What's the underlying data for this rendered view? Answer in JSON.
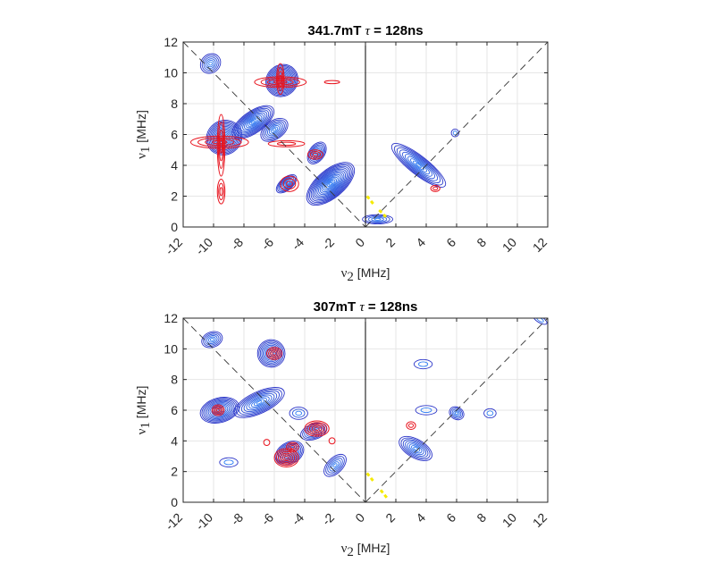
{
  "chart_data": [
    {
      "type": "contour",
      "title_field": "341.7mT",
      "title_tau": "τ",
      "title_rest": " = 128ns",
      "xlabel_sym": "ν",
      "xlabel_sub": "2",
      "xlabel_unit": " [MHz]",
      "ylabel_sym": "ν",
      "ylabel_sub": "1",
      "ylabel_unit": " [MHz]",
      "xlim": [
        -12,
        12
      ],
      "ylim": [
        0,
        12
      ],
      "xticks": [
        -12,
        -10,
        -8,
        -6,
        -4,
        -2,
        0,
        2,
        4,
        6,
        8,
        10,
        12
      ],
      "yticks": [
        0,
        2,
        4,
        6,
        8,
        10,
        12
      ],
      "grid": true,
      "colors": {
        "blue_series": "#2b35c8",
        "blue_fill": "#2f7ef5",
        "red_series": "#e8141e",
        "yellow": "#f5ea00",
        "diagonal": "#333333"
      },
      "blue_peaks": [
        {
          "x": -10.2,
          "y": 10.6,
          "rx": 0.7,
          "ry": 0.6,
          "rot": -40,
          "n": 6
        },
        {
          "x": -9.3,
          "y": 5.8,
          "rx": 1.2,
          "ry": 1.1,
          "rot": -35,
          "n": 14
        },
        {
          "x": -7.4,
          "y": 6.8,
          "rx": 1.6,
          "ry": 0.7,
          "rot": -35,
          "n": 12
        },
        {
          "x": -5.5,
          "y": 9.5,
          "rx": 1.1,
          "ry": 1.0,
          "rot": -45,
          "n": 14
        },
        {
          "x": -6.0,
          "y": 6.3,
          "rx": 1.0,
          "ry": 0.6,
          "rot": -35,
          "n": 8
        },
        {
          "x": -5.2,
          "y": 2.8,
          "rx": 0.8,
          "ry": 0.4,
          "rot": -40,
          "n": 8
        },
        {
          "x": -3.2,
          "y": 4.8,
          "rx": 0.8,
          "ry": 0.5,
          "rot": -55,
          "n": 8
        },
        {
          "x": -2.3,
          "y": 2.8,
          "rx": 1.9,
          "ry": 0.9,
          "rot": -40,
          "n": 16
        },
        {
          "x": 0.8,
          "y": 0.5,
          "rx": 1.0,
          "ry": 0.3,
          "rot": 0,
          "n": 5
        },
        {
          "x": 3.5,
          "y": 4.0,
          "rx": 2.2,
          "ry": 0.6,
          "rot": 38,
          "n": 10
        },
        {
          "x": 5.9,
          "y": 6.1,
          "rx": 0.25,
          "ry": 0.25,
          "rot": 0,
          "n": 2
        }
      ],
      "red_peaks": [
        {
          "x": -9.6,
          "y": 5.5,
          "rx": 1.9,
          "ry": 0.4,
          "n": 4
        },
        {
          "x": -9.5,
          "y": 5.3,
          "rx": 0.25,
          "ry": 2.0,
          "n": 4
        },
        {
          "x": -9.5,
          "y": 2.3,
          "rx": 0.25,
          "ry": 0.8,
          "n": 3
        },
        {
          "x": -5.6,
          "y": 9.4,
          "rx": 1.7,
          "ry": 0.35,
          "n": 4
        },
        {
          "x": -5.6,
          "y": 9.6,
          "rx": 0.25,
          "ry": 1.0,
          "n": 4
        },
        {
          "x": -5.2,
          "y": 5.4,
          "rx": 1.2,
          "ry": 0.2,
          "n": 2
        },
        {
          "x": -5.0,
          "y": 2.8,
          "rx": 0.6,
          "ry": 0.5,
          "n": 3
        },
        {
          "x": -3.3,
          "y": 4.7,
          "rx": 0.5,
          "ry": 0.3,
          "n": 3
        },
        {
          "x": -2.2,
          "y": 9.4,
          "rx": 0.5,
          "ry": 0.1,
          "n": 1
        },
        {
          "x": 4.6,
          "y": 2.5,
          "rx": 0.3,
          "ry": 0.2,
          "n": 2
        }
      ],
      "yellow_segments": [
        [
          0.1,
          2.0,
          0.6,
          1.4
        ],
        [
          0.9,
          1.1,
          1.4,
          0.6
        ]
      ]
    },
    {
      "type": "contour",
      "title_field": "307mT",
      "title_tau": "τ",
      "title_rest": " = 128ns",
      "xlabel_sym": "ν",
      "xlabel_sub": "2",
      "xlabel_unit": " [MHz]",
      "ylabel_sym": "ν",
      "ylabel_sub": "1",
      "ylabel_unit": " [MHz]",
      "xlim": [
        -12,
        12
      ],
      "ylim": [
        0,
        12
      ],
      "xticks": [
        -12,
        -10,
        -8,
        -6,
        -4,
        -2,
        0,
        2,
        4,
        6,
        8,
        10,
        12
      ],
      "yticks": [
        0,
        2,
        4,
        6,
        8,
        10,
        12
      ],
      "grid": true,
      "colors": {
        "blue_series": "#2b35c8",
        "blue_fill": "#2f7ef5",
        "red_series": "#e8141e",
        "yellow": "#f5ea00",
        "diagonal": "#333333"
      },
      "blue_peaks": [
        {
          "x": -10.1,
          "y": 10.6,
          "rx": 0.7,
          "ry": 0.5,
          "rot": -20,
          "n": 6
        },
        {
          "x": -6.2,
          "y": 9.7,
          "rx": 0.9,
          "ry": 0.9,
          "rot": -40,
          "n": 10
        },
        {
          "x": -9.6,
          "y": 6.0,
          "rx": 1.3,
          "ry": 0.8,
          "rot": -15,
          "n": 12
        },
        {
          "x": -7.0,
          "y": 6.5,
          "rx": 1.8,
          "ry": 0.7,
          "rot": -25,
          "n": 10
        },
        {
          "x": -5.0,
          "y": 3.2,
          "rx": 1.0,
          "ry": 0.7,
          "rot": -30,
          "n": 10
        },
        {
          "x": -3.4,
          "y": 4.6,
          "rx": 0.9,
          "ry": 0.5,
          "rot": -20,
          "n": 7
        },
        {
          "x": -2.0,
          "y": 2.4,
          "rx": 0.9,
          "ry": 0.5,
          "rot": -45,
          "n": 6
        },
        {
          "x": -9.0,
          "y": 2.6,
          "rx": 0.6,
          "ry": 0.3,
          "rot": 0,
          "n": 2
        },
        {
          "x": -4.4,
          "y": 5.8,
          "rx": 0.6,
          "ry": 0.4,
          "rot": 0,
          "n": 3
        },
        {
          "x": 3.3,
          "y": 3.5,
          "rx": 1.2,
          "ry": 0.6,
          "rot": 30,
          "n": 8
        },
        {
          "x": 6.0,
          "y": 5.8,
          "rx": 0.5,
          "ry": 0.4,
          "rot": 30,
          "n": 5
        },
        {
          "x": 4.0,
          "y": 6.0,
          "rx": 0.7,
          "ry": 0.3,
          "rot": 0,
          "n": 2
        },
        {
          "x": 8.2,
          "y": 5.8,
          "rx": 0.4,
          "ry": 0.3,
          "rot": 0,
          "n": 2
        },
        {
          "x": 11.5,
          "y": 11.9,
          "rx": 0.5,
          "ry": 0.2,
          "rot": 30,
          "n": 2
        },
        {
          "x": 3.8,
          "y": 9.0,
          "rx": 0.6,
          "ry": 0.3,
          "rot": 0,
          "n": 2
        }
      ],
      "red_peaks": [
        {
          "x": -9.7,
          "y": 6.0,
          "rx": 0.4,
          "ry": 0.35,
          "n": 4
        },
        {
          "x": -6.0,
          "y": 9.7,
          "rx": 0.5,
          "ry": 0.4,
          "n": 4
        },
        {
          "x": -5.2,
          "y": 2.9,
          "rx": 0.8,
          "ry": 0.6,
          "n": 6
        },
        {
          "x": -4.8,
          "y": 3.6,
          "rx": 0.4,
          "ry": 0.3,
          "n": 3
        },
        {
          "x": -3.2,
          "y": 4.8,
          "rx": 0.8,
          "ry": 0.5,
          "n": 5
        },
        {
          "x": -2.2,
          "y": 4.0,
          "rx": 0.2,
          "ry": 0.2,
          "n": 1
        },
        {
          "x": -6.5,
          "y": 3.9,
          "rx": 0.2,
          "ry": 0.2,
          "n": 1
        },
        {
          "x": 3.0,
          "y": 5.0,
          "rx": 0.3,
          "ry": 0.25,
          "n": 2
        }
      ],
      "yellow_segments": [
        [
          0.1,
          1.9,
          0.5,
          1.4
        ],
        [
          1.0,
          0.8,
          1.4,
          0.3
        ]
      ]
    }
  ]
}
